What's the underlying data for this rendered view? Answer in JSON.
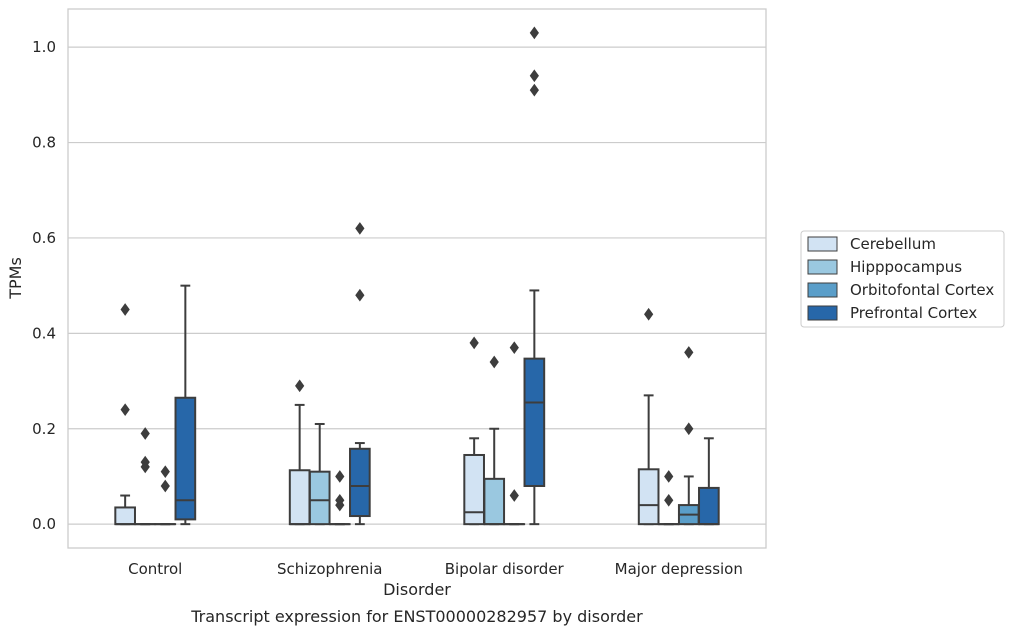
{
  "chart_data": {
    "type": "box",
    "caption": "Transcript expression for ENST00000282957 by disorder",
    "xlabel": "Disorder",
    "ylabel": "TPMs",
    "ylim": [
      -0.05,
      1.08
    ],
    "yticks": [
      "0.0",
      "0.2",
      "0.4",
      "0.6",
      "0.8",
      "1.0"
    ],
    "grid": "horizontal",
    "legend_position": "right",
    "categories": [
      "Control",
      "Schizophrenia",
      "Bipolar disorder",
      "Major depression"
    ],
    "series": [
      {
        "name": "Cerebellum",
        "color": "#d2e3f3",
        "boxes": [
          {
            "whislo": 0.0,
            "q1": 0.0,
            "med": 0.0,
            "q3": 0.035,
            "whishi": 0.06,
            "fliers": [
              0.45,
              0.24
            ]
          },
          {
            "whislo": 0.0,
            "q1": 0.0,
            "med": 0.0,
            "q3": 0.113,
            "whishi": 0.25,
            "fliers": [
              0.29
            ]
          },
          {
            "whislo": 0.0,
            "q1": 0.0,
            "med": 0.025,
            "q3": 0.145,
            "whishi": 0.18,
            "fliers": [
              0.38
            ]
          },
          {
            "whislo": 0.0,
            "q1": 0.0,
            "med": 0.04,
            "q3": 0.115,
            "whishi": 0.27,
            "fliers": [
              0.44
            ]
          }
        ]
      },
      {
        "name": "Hipppocampus",
        "color": "#9ac8e0",
        "boxes": [
          {
            "whislo": 0.0,
            "q1": 0.0,
            "med": 0.0,
            "q3": 0.0,
            "whishi": 0.0,
            "fliers": [
              0.19,
              0.13,
              0.12
            ]
          },
          {
            "whislo": 0.0,
            "q1": 0.0,
            "med": 0.05,
            "q3": 0.11,
            "whishi": 0.21,
            "fliers": []
          },
          {
            "whislo": 0.0,
            "q1": 0.0,
            "med": 0.0,
            "q3": 0.095,
            "whishi": 0.2,
            "fliers": [
              0.34
            ]
          },
          {
            "whislo": 0.0,
            "q1": 0.0,
            "med": 0.0,
            "q3": 0.0,
            "whishi": 0.0,
            "fliers": [
              0.1,
              0.05
            ]
          }
        ]
      },
      {
        "name": "Orbitofontal Cortex",
        "color": "#5a9ec9",
        "boxes": [
          {
            "whislo": 0.0,
            "q1": 0.0,
            "med": 0.0,
            "q3": 0.0,
            "whishi": 0.0,
            "fliers": [
              0.11,
              0.08
            ]
          },
          {
            "whislo": 0.0,
            "q1": 0.0,
            "med": 0.0,
            "q3": 0.0,
            "whishi": 0.0,
            "fliers": [
              0.1,
              0.05,
              0.04
            ]
          },
          {
            "whislo": 0.0,
            "q1": 0.0,
            "med": 0.0,
            "q3": 0.0,
            "whishi": 0.0,
            "fliers": [
              0.37,
              0.06
            ]
          },
          {
            "whislo": 0.0,
            "q1": 0.0,
            "med": 0.02,
            "q3": 0.04,
            "whishi": 0.1,
            "fliers": [
              0.36,
              0.2
            ]
          }
        ]
      },
      {
        "name": "Prefrontal Cortex",
        "color": "#2767a9",
        "boxes": [
          {
            "whislo": 0.0,
            "q1": 0.01,
            "med": 0.05,
            "q3": 0.265,
            "whishi": 0.5,
            "fliers": []
          },
          {
            "whislo": 0.0,
            "q1": 0.017,
            "med": 0.08,
            "q3": 0.158,
            "whishi": 0.17,
            "fliers": [
              0.62,
              0.48
            ]
          },
          {
            "whislo": 0.0,
            "q1": 0.08,
            "med": 0.255,
            "q3": 0.347,
            "whishi": 0.49,
            "fliers": [
              1.03,
              0.94,
              0.91
            ]
          },
          {
            "whislo": 0.0,
            "q1": 0.0,
            "med": 0.0,
            "q3": 0.076,
            "whishi": 0.18,
            "fliers": []
          }
        ]
      }
    ]
  }
}
